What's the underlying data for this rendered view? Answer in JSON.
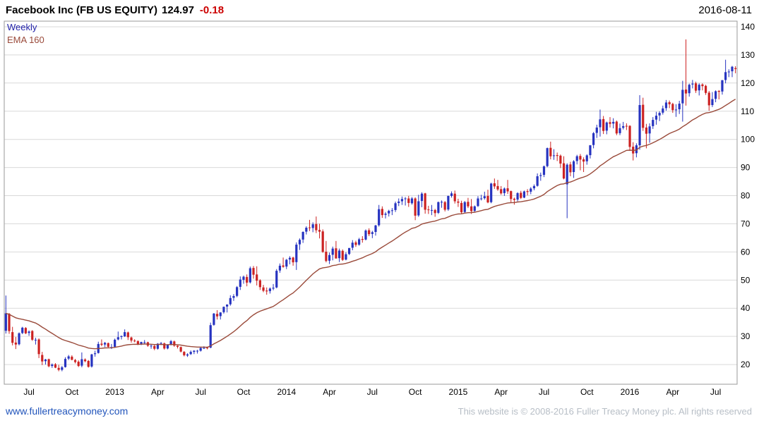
{
  "header": {
    "title": "Facebook Inc (FB US EQUITY)",
    "price": "124.97",
    "change": "-0.18",
    "date": "2016-08-11"
  },
  "legend": {
    "timeframe": "Weekly",
    "ema_label": "EMA 160"
  },
  "footer": {
    "site": "www.fullertreacymoney.com",
    "copyright": "This website is © 2008-2016 Fuller Treacy Money plc. All rights reserved"
  },
  "colors": {
    "up": "#2633c0",
    "down": "#cc2222",
    "ema": "#9a4a3a",
    "grid": "#d9d9d9",
    "frame": "#9a9a9a",
    "axis_text": "#000000",
    "change": "#cc0000",
    "timeframe": "#2222aa",
    "link": "#2255bb",
    "copyright": "#b7bec6"
  },
  "chart_data": {
    "type": "candlestick",
    "title": "Facebook Inc (FB US EQUITY)",
    "timeframe": "weekly",
    "ema_period": 160,
    "last_price": 124.97,
    "change": -0.18,
    "y_axis": {
      "min": 13,
      "max": 142,
      "ticks": [
        20,
        30,
        40,
        50,
        60,
        70,
        80,
        90,
        100,
        110,
        120,
        130,
        140
      ]
    },
    "x_labels": [
      {
        "i": 7,
        "t": "Jul"
      },
      {
        "i": 20,
        "t": "Oct"
      },
      {
        "i": 33,
        "t": "2013"
      },
      {
        "i": 46,
        "t": "Apr"
      },
      {
        "i": 59,
        "t": "Jul"
      },
      {
        "i": 72,
        "t": "Oct"
      },
      {
        "i": 85,
        "t": "2014"
      },
      {
        "i": 98,
        "t": "Apr"
      },
      {
        "i": 111,
        "t": "Jul"
      },
      {
        "i": 124,
        "t": "Oct"
      },
      {
        "i": 137,
        "t": "2015"
      },
      {
        "i": 150,
        "t": "Apr"
      },
      {
        "i": 163,
        "t": "Jul"
      },
      {
        "i": 176,
        "t": "Oct"
      },
      {
        "i": 189,
        "t": "2016"
      },
      {
        "i": 202,
        "t": "Apr"
      },
      {
        "i": 215,
        "t": "Jul"
      }
    ],
    "candles": [
      [
        32,
        44.5,
        31,
        38.2
      ],
      [
        38,
        38.3,
        30.9,
        31.9
      ],
      [
        31.5,
        33.4,
        26.8,
        27.7
      ],
      [
        27.8,
        29.8,
        25.5,
        27.1
      ],
      [
        27.2,
        31.4,
        26.8,
        31.1
      ],
      [
        31.2,
        33.4,
        30.8,
        33.1
      ],
      [
        33,
        33.3,
        30.8,
        31.1
      ],
      [
        31.2,
        32.1,
        30.2,
        31.7
      ],
      [
        31.9,
        32.2,
        28.4,
        28.8
      ],
      [
        28.7,
        29.5,
        27.1,
        28.8
      ],
      [
        28.9,
        29.3,
        22.3,
        23.7
      ],
      [
        23.4,
        24.5,
        19.8,
        21.1
      ],
      [
        21.2,
        22,
        20,
        21.8
      ],
      [
        21.9,
        22.1,
        19,
        19.4
      ],
      [
        19.5,
        20.4,
        18.8,
        20
      ],
      [
        20.1,
        20.5,
        18.7,
        18.9
      ],
      [
        18.8,
        19.9,
        17.6,
        18.1
      ],
      [
        18.1,
        19.5,
        17.6,
        19
      ],
      [
        19.1,
        22.6,
        18.9,
        22
      ],
      [
        22.1,
        23.4,
        21.6,
        22.9
      ],
      [
        22.8,
        23.3,
        21.5,
        21.7
      ],
      [
        21.6,
        22,
        20.4,
        20.9
      ],
      [
        21,
        21.5,
        19.1,
        19.5
      ],
      [
        19.6,
        24.3,
        19,
        21.9
      ],
      [
        21.8,
        22.2,
        20.8,
        21.2
      ],
      [
        21.3,
        21.6,
        18.9,
        19.2
      ],
      [
        19.3,
        23.8,
        18.9,
        23.6
      ],
      [
        23.7,
        24.9,
        22.8,
        24
      ],
      [
        24.1,
        28.1,
        23.9,
        27.3
      ],
      [
        27.4,
        28.9,
        26.5,
        27
      ],
      [
        27.1,
        28,
        26.2,
        27.7
      ],
      [
        27.6,
        27.8,
        25.9,
        26.3
      ],
      [
        26.2,
        27.3,
        25.5,
        26.2
      ],
      [
        26.3,
        29.2,
        25.9,
        28.8
      ],
      [
        28.9,
        31.7,
        28.6,
        29.7
      ],
      [
        29.8,
        30.3,
        28.9,
        30.1
      ],
      [
        30,
        32.5,
        29.8,
        31.5
      ],
      [
        31.4,
        31.7,
        28.7,
        29.7
      ],
      [
        29.6,
        29.9,
        27.8,
        28.5
      ],
      [
        28.5,
        29,
        27.9,
        28.3
      ],
      [
        28.3,
        28.6,
        26.9,
        27.1
      ],
      [
        27.2,
        28.1,
        26.9,
        28
      ],
      [
        27.9,
        28.7,
        27.2,
        27.9
      ],
      [
        27.9,
        28.1,
        26.3,
        26.7
      ],
      [
        26.7,
        27.1,
        25.6,
        26.7
      ],
      [
        26.6,
        26.9,
        25.1,
        25.6
      ],
      [
        25.6,
        27.6,
        25.3,
        27.4
      ],
      [
        27.4,
        28,
        26.9,
        27.6
      ],
      [
        27.5,
        27.8,
        25.3,
        25.7
      ],
      [
        25.7,
        27.2,
        25.4,
        26.9
      ],
      [
        27,
        28.7,
        26.8,
        28.3
      ],
      [
        28.2,
        28.5,
        26.3,
        26.7
      ],
      [
        26.7,
        26.8,
        25.7,
        26.3
      ],
      [
        26.2,
        26.4,
        24.3,
        24.6
      ],
      [
        24.5,
        24.8,
        22.9,
        23.3
      ],
      [
        23.2,
        24,
        22.7,
        23.6
      ],
      [
        23.7,
        25,
        23.4,
        24.5
      ],
      [
        24.5,
        25.1,
        23.7,
        24.9
      ],
      [
        24.9,
        25.2,
        23.9,
        24.9
      ],
      [
        24.9,
        26.1,
        24.6,
        25.9
      ],
      [
        25.9,
        26.5,
        25.5,
        25.9
      ],
      [
        26,
        26.3,
        25.4,
        25.9
      ],
      [
        26,
        34.9,
        25.8,
        34
      ],
      [
        34.1,
        38.3,
        33.8,
        38.1
      ],
      [
        38,
        39.3,
        36,
        37.1
      ],
      [
        37.2,
        38.6,
        36,
        38.5
      ],
      [
        38.6,
        40.6,
        38.1,
        40.5
      ],
      [
        40.6,
        41.4,
        38.5,
        41.3
      ],
      [
        41.4,
        44.6,
        40.9,
        43.6
      ],
      [
        43.7,
        45,
        42.6,
        44.3
      ],
      [
        44.4,
        47.9,
        43.9,
        47.5
      ],
      [
        47.6,
        51.3,
        46.5,
        50.2
      ],
      [
        50.1,
        51.6,
        48.7,
        51.2
      ],
      [
        51.1,
        52,
        47.8,
        49.1
      ],
      [
        49.2,
        54.8,
        48.8,
        54.2
      ],
      [
        54.3,
        55,
        50.5,
        51.9
      ],
      [
        52,
        54.9,
        48.1,
        49.8
      ],
      [
        49.9,
        50.3,
        46.5,
        47.5
      ],
      [
        47.4,
        48.3,
        45.7,
        46.2
      ],
      [
        46.3,
        47.4,
        44.8,
        46
      ],
      [
        46.1,
        47.4,
        45.2,
        47
      ],
      [
        47,
        48.6,
        46.4,
        47.3
      ],
      [
        47.4,
        53.9,
        47.1,
        53.3
      ],
      [
        53.4,
        55.9,
        52.6,
        55.1
      ],
      [
        55.2,
        58,
        54.4,
        54.7
      ],
      [
        54.8,
        57.5,
        53.9,
        57.2
      ],
      [
        57.3,
        58.5,
        55.6,
        57.9
      ],
      [
        58,
        58.3,
        55.1,
        56.3
      ],
      [
        56.4,
        63.4,
        53.6,
        62.6
      ],
      [
        62.7,
        64.8,
        60.7,
        64.3
      ],
      [
        64.4,
        67.3,
        63.2,
        67.1
      ],
      [
        67.2,
        69.1,
        66.2,
        68.6
      ],
      [
        68.7,
        71.4,
        67.4,
        68.5
      ],
      [
        68.5,
        70.5,
        67,
        69.8
      ],
      [
        69.9,
        72.6,
        66.7,
        67.7
      ],
      [
        67.8,
        70,
        64.8,
        67.2
      ],
      [
        67.3,
        68,
        59.7,
        60
      ],
      [
        60.1,
        63.9,
        56.3,
        56.8
      ],
      [
        56.9,
        59.8,
        55.7,
        58.9
      ],
      [
        59,
        61.9,
        57,
        61.2
      ],
      [
        61.3,
        63.9,
        57.6,
        57.7
      ],
      [
        57.8,
        61.2,
        56.4,
        60.5
      ],
      [
        60.4,
        60.9,
        56.8,
        57.2
      ],
      [
        57.3,
        59.9,
        57,
        59.2
      ],
      [
        59.3,
        61.4,
        58.9,
        61.4
      ],
      [
        61.5,
        64.2,
        60.6,
        63.3
      ],
      [
        63.4,
        64,
        61.8,
        62.5
      ],
      [
        62.6,
        65,
        62.2,
        64.5
      ],
      [
        64.6,
        65.6,
        63.3,
        64.3
      ],
      [
        64.4,
        68,
        64.1,
        67.6
      ],
      [
        67.7,
        68.4,
        65.6,
        66.3
      ],
      [
        66.4,
        67.5,
        64.9,
        67
      ],
      [
        67.1,
        69.6,
        65.8,
        69.4
      ],
      [
        69.5,
        76.7,
        69,
        75.2
      ],
      [
        75.3,
        76.2,
        72.1,
        73.1
      ],
      [
        73.2,
        74.2,
        71.9,
        73.6
      ],
      [
        73.7,
        75,
        72.6,
        74.6
      ],
      [
        74.7,
        75.6,
        73.1,
        74.8
      ],
      [
        74.9,
        77.9,
        74.2,
        77.3
      ],
      [
        77.4,
        79,
        76.3,
        77.9
      ],
      [
        78,
        79.7,
        76.7,
        78.8
      ],
      [
        78.9,
        79.5,
        76.5,
        79
      ],
      [
        79,
        79.9,
        76,
        77.4
      ],
      [
        77.3,
        79.5,
        76.8,
        79
      ],
      [
        79,
        79.4,
        71.3,
        72.9
      ],
      [
        73,
        80.3,
        72.5,
        78
      ],
      [
        78.1,
        81.2,
        75.9,
        80.7
      ],
      [
        80.8,
        81,
        73.6,
        75
      ],
      [
        75.1,
        76.4,
        73.5,
        74.9
      ],
      [
        74.9,
        76.7,
        73.1,
        74.9
      ],
      [
        74.9,
        75.3,
        72.5,
        73.8
      ],
      [
        73.9,
        77.9,
        73.5,
        77.7
      ],
      [
        77.8,
        78.3,
        75.7,
        77.8
      ],
      [
        77.7,
        78.1,
        74.4,
        75
      ],
      [
        75.1,
        80,
        74.6,
        79.9
      ],
      [
        79.9,
        81.5,
        79.3,
        80.8
      ],
      [
        80.7,
        81.8,
        77.2,
        78
      ],
      [
        77.9,
        78.9,
        76,
        77.5
      ],
      [
        77.4,
        78.2,
        73.5,
        74.1
      ],
      [
        74.2,
        78.1,
        73.8,
        77.7
      ],
      [
        77.8,
        79.2,
        75.6,
        76.2
      ],
      [
        76.2,
        78.8,
        73.5,
        74.5
      ],
      [
        74.6,
        76.5,
        74,
        76.2
      ],
      [
        76.3,
        79.8,
        76,
        79
      ],
      [
        79,
        80.3,
        78.3,
        79
      ],
      [
        79.1,
        81.4,
        78.6,
        79.8
      ],
      [
        79.9,
        82.1,
        77.3,
        77.6
      ],
      [
        77.7,
        84.6,
        77.3,
        84.3
      ],
      [
        84.4,
        86.1,
        82.4,
        83.3
      ],
      [
        83.4,
        85.6,
        81.7,
        82.2
      ],
      [
        82.3,
        83.4,
        80.3,
        80.8
      ],
      [
        80.9,
        82.9,
        79.9,
        82.5
      ],
      [
        82.6,
        85.6,
        80.6,
        81.5
      ],
      [
        81.6,
        81.8,
        77.5,
        78.8
      ],
      [
        78.9,
        79.3,
        76.8,
        78.5
      ],
      [
        78.6,
        81.2,
        78,
        80.9
      ],
      [
        81,
        81.7,
        78.8,
        79.2
      ],
      [
        79.3,
        81.8,
        79.1,
        81.5
      ],
      [
        81.6,
        82.3,
        80.1,
        81.3
      ],
      [
        81.4,
        83,
        80.5,
        82.5
      ],
      [
        82.6,
        84,
        81.9,
        83.4
      ],
      [
        83.5,
        87.9,
        83.2,
        86.9
      ],
      [
        87,
        88.2,
        85.3,
        87.3
      ],
      [
        87.4,
        90.7,
        86.6,
        90.4
      ],
      [
        90.5,
        97.1,
        90.1,
        96.9
      ],
      [
        97,
        99.2,
        92.9,
        94
      ],
      [
        94.1,
        96.5,
        92.7,
        94.3
      ],
      [
        94.4,
        95.3,
        92.3,
        94.1
      ],
      [
        94.2,
        94.6,
        89.8,
        91.4
      ],
      [
        91.5,
        94,
        85.8,
        86.1
      ],
      [
        84,
        91.5,
        72,
        91
      ],
      [
        91.1,
        92,
        86.9,
        88.3
      ],
      [
        88.4,
        92.6,
        86.3,
        92.2
      ],
      [
        92.3,
        94.5,
        91.1,
        94
      ],
      [
        94.1,
        94.8,
        89,
        92.8
      ],
      [
        92.9,
        93.6,
        88.4,
        92.1
      ],
      [
        92.2,
        94.7,
        91,
        94.3
      ],
      [
        94.4,
        98,
        93.2,
        97.9
      ],
      [
        98,
        102.6,
        96.8,
        102.2
      ],
      [
        102.3,
        105.2,
        100.5,
        104.2
      ],
      [
        104.3,
        110.6,
        101,
        107.1
      ],
      [
        107.2,
        108.3,
        101.9,
        103
      ],
      [
        103.1,
        106.3,
        101.8,
        106
      ],
      [
        106.1,
        107.9,
        104.2,
        105.5
      ],
      [
        105.6,
        107.5,
        103.9,
        106.2
      ],
      [
        106.3,
        106.7,
        101.5,
        102.1
      ],
      [
        102.2,
        105.6,
        101.5,
        104
      ],
      [
        104.1,
        106.2,
        103.5,
        104.7
      ],
      [
        104.8,
        105.7,
        103.3,
        104.7
      ],
      [
        104.8,
        105,
        95.9,
        97.3
      ],
      [
        97.4,
        99,
        92.5,
        95
      ],
      [
        95.1,
        98.6,
        93.6,
        97.9
      ],
      [
        97.9,
        115.7,
        96.3,
        112.2
      ],
      [
        112.3,
        114.8,
        103,
        104.1
      ],
      [
        104.2,
        105.5,
        96.8,
        102
      ],
      [
        102.1,
        105.7,
        98.8,
        104.6
      ],
      [
        104.7,
        107.9,
        103.7,
        106.9
      ],
      [
        107,
        109.8,
        105.2,
        108.4
      ],
      [
        108.5,
        110,
        106.5,
        109.4
      ],
      [
        109.5,
        112,
        108.8,
        111
      ],
      [
        111.1,
        114,
        110.2,
        113.1
      ],
      [
        113.2,
        113.8,
        111.1,
        112.5
      ],
      [
        112.6,
        113,
        109.4,
        110.4
      ],
      [
        110.5,
        112.5,
        108,
        110.6
      ],
      [
        110.7,
        113.7,
        109,
        112.7
      ],
      [
        112.8,
        120.8,
        106.3,
        117.6
      ],
      [
        117.7,
        135.5,
        112,
        116.3
      ],
      [
        116.4,
        119.8,
        115.2,
        119.4
      ],
      [
        119.5,
        121.1,
        118.1,
        119.8
      ],
      [
        119.9,
        120.5,
        116.5,
        117.3
      ],
      [
        117.4,
        119.9,
        115.6,
        119.4
      ],
      [
        119.5,
        119.9,
        117.4,
        118.9
      ],
      [
        119,
        119.4,
        115.8,
        116.5
      ],
      [
        116.6,
        117.2,
        110.2,
        112.1
      ],
      [
        112.2,
        116.8,
        111.5,
        114.3
      ],
      [
        114.4,
        117.4,
        113.2,
        117.1
      ],
      [
        117.2,
        117.5,
        114.2,
        116.9
      ],
      [
        117,
        121.1,
        115.9,
        121
      ],
      [
        121.1,
        128.3,
        119.9,
        123.9
      ],
      [
        124,
        124.9,
        122.1,
        124.1
      ],
      [
        124.2,
        126.1,
        122.1,
        125.8
      ],
      [
        125.3,
        126,
        123.5,
        125
      ]
    ]
  }
}
